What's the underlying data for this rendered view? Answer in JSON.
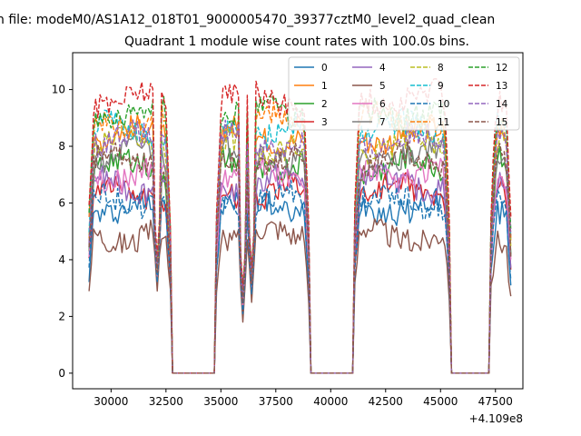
{
  "suptitle": "n file: modeM0/AS1A12_018T01_9000005470_39377cztM0_level2_quad_clean",
  "chart_data": {
    "type": "line",
    "title": "Quadrant 1 module wise count rates with 100.0s bins.",
    "xlabel": "",
    "ylabel": "",
    "x_offset_label": "+4.109e8",
    "xlim": [
      28250,
      48750
    ],
    "ylim": [
      -0.55,
      11.3
    ],
    "xticks": [
      30000,
      32500,
      35000,
      37500,
      40000,
      42500,
      45000,
      47500
    ],
    "xtick_labels": [
      "30000",
      "32500",
      "35000",
      "37500",
      "40000",
      "42500",
      "45000",
      "47500"
    ],
    "yticks": [
      0,
      2,
      4,
      6,
      8,
      10
    ],
    "ytick_labels": [
      "0",
      "2",
      "4",
      "6",
      "8",
      "10"
    ],
    "grid": false,
    "legend": {
      "placement": "top-right",
      "columns": 4
    },
    "time_segments": [
      [
        29000,
        32700
      ],
      [
        34800,
        39000
      ],
      [
        41100,
        45400
      ],
      [
        47300,
        48200
      ]
    ],
    "dips": [
      [
        32100,
        2.8
      ],
      [
        36000,
        1.7
      ],
      [
        36400,
        2.4
      ]
    ],
    "series": [
      {
        "name": "0",
        "color": "#1f77b4",
        "dash": "solid",
        "level": 5.9
      },
      {
        "name": "1",
        "color": "#ff7f0e",
        "dash": "solid",
        "level": 8.4
      },
      {
        "name": "2",
        "color": "#2ca02c",
        "dash": "solid",
        "level": 7.3
      },
      {
        "name": "3",
        "color": "#d62728",
        "dash": "solid",
        "level": 6.4
      },
      {
        "name": "4",
        "color": "#9467bd",
        "dash": "solid",
        "level": 6.7
      },
      {
        "name": "5",
        "color": "#8c564b",
        "dash": "solid",
        "level": 4.9
      },
      {
        "name": "6",
        "color": "#e377c2",
        "dash": "solid",
        "level": 7.0
      },
      {
        "name": "7",
        "color": "#7f7f7f",
        "dash": "solid",
        "level": 7.7
      },
      {
        "name": "8",
        "color": "#bcbd22",
        "dash": "dashed",
        "level": 8.0
      },
      {
        "name": "9",
        "color": "#17becf",
        "dash": "dashed",
        "level": 8.6
      },
      {
        "name": "10",
        "color": "#1f77b4",
        "dash": "dashed",
        "level": 6.1
      },
      {
        "name": "11",
        "color": "#ff7f0e",
        "dash": "dashed",
        "level": 8.9
      },
      {
        "name": "12",
        "color": "#2ca02c",
        "dash": "dashed",
        "level": 9.2
      },
      {
        "name": "13",
        "color": "#d62728",
        "dash": "dashed",
        "level": 9.7
      },
      {
        "name": "14",
        "color": "#9467bd",
        "dash": "dashed",
        "level": 8.2
      },
      {
        "name": "15",
        "color": "#8c564b",
        "dash": "dashed",
        "level": 7.5
      }
    ]
  }
}
